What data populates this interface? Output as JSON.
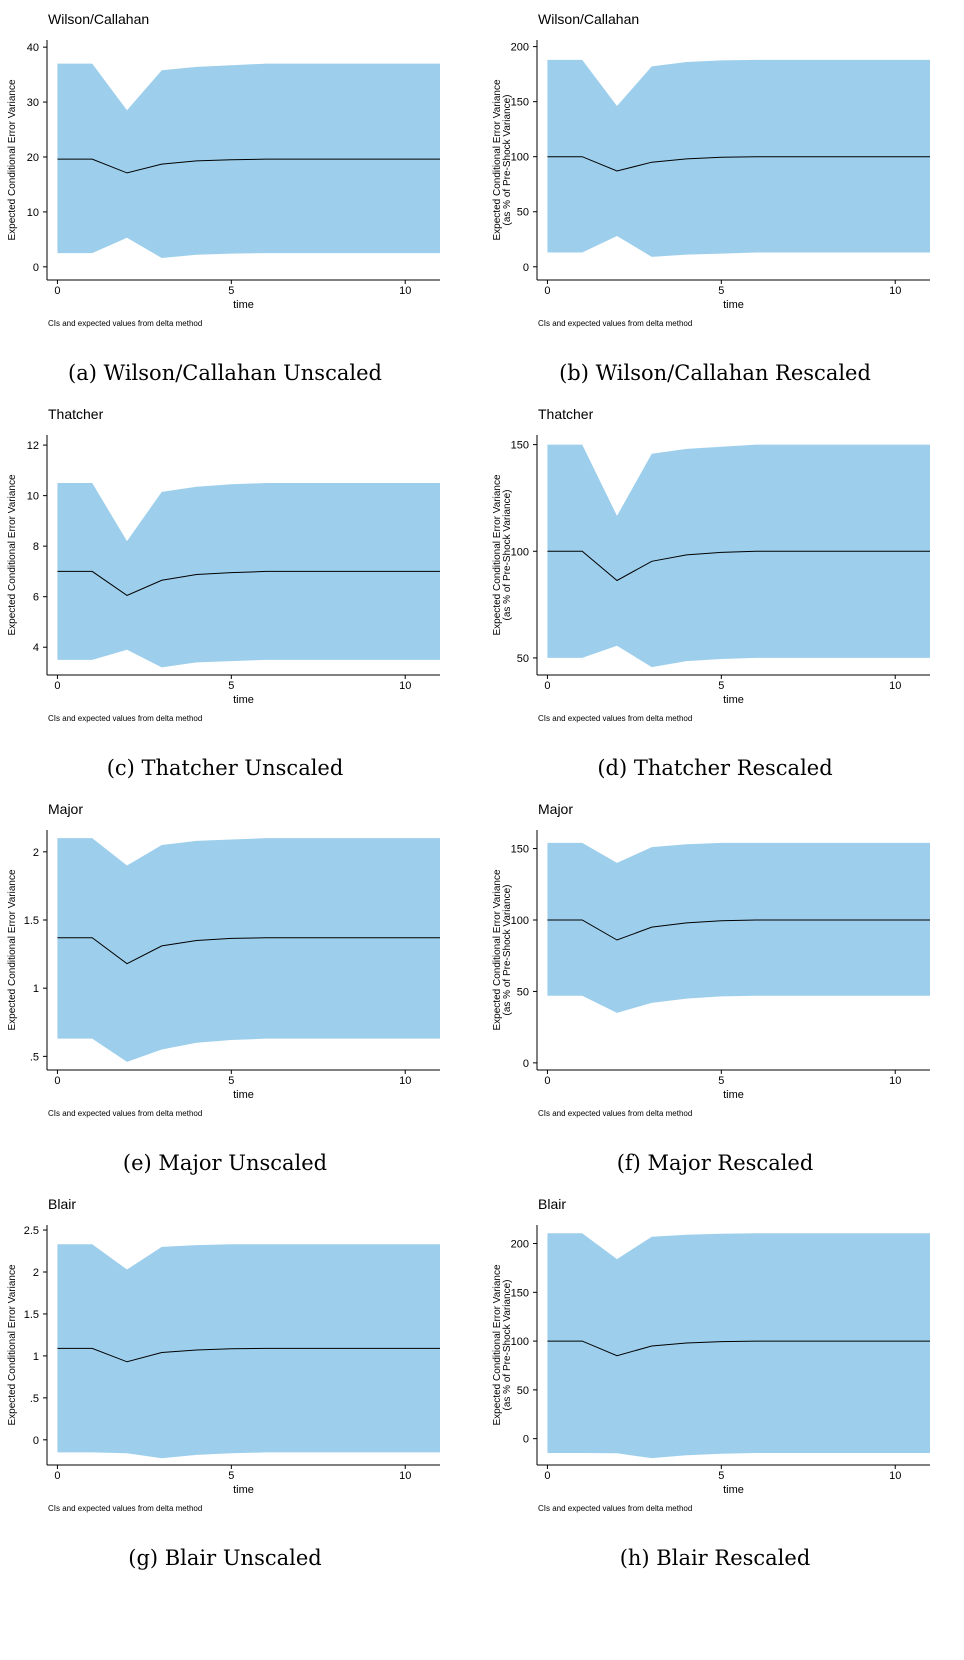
{
  "chart_data": [
    {
      "type": "line",
      "title": "Wilson/Callahan",
      "ylabel": [
        "Expected Conditional Error Variance"
      ],
      "xlabel": "time",
      "note": "CIs and expected values from delta method",
      "caption": "(a) Wilson/Callahan Unscaled",
      "x": [
        0,
        1,
        2,
        3,
        4,
        5,
        6,
        7,
        8,
        9,
        10,
        11
      ],
      "values": [
        19.6,
        19.6,
        17.1,
        18.7,
        19.3,
        19.5,
        19.6,
        19.6,
        19.6,
        19.6,
        19.6,
        19.6
      ],
      "lower": [
        2.5,
        2.5,
        5.3,
        1.6,
        2.2,
        2.4,
        2.5,
        2.5,
        2.5,
        2.5,
        2.5,
        2.5
      ],
      "upper": [
        37,
        37,
        28.5,
        35.8,
        36.4,
        36.7,
        37,
        37,
        37,
        37,
        37,
        37
      ],
      "xlim": [
        -0.3,
        11
      ],
      "xticks": [
        0,
        5,
        10
      ],
      "ylim": [
        -2.4,
        41.3
      ],
      "yticks": [
        0,
        10,
        20,
        30,
        40
      ],
      "band_color": "#9dcfec",
      "line_color": "#000000"
    },
    {
      "type": "line",
      "title": "Wilson/Callahan",
      "ylabel": [
        "Expected Conditional Error Variance",
        "(as % of Pre-Shock Variance)"
      ],
      "xlabel": "time",
      "note": "CIs and expected values from delta method",
      "caption": "(b) Wilson/Callahan Rescaled",
      "x": [
        0,
        1,
        2,
        3,
        4,
        5,
        6,
        7,
        8,
        9,
        10,
        11
      ],
      "values": [
        100,
        100,
        87,
        95,
        98,
        99.5,
        100,
        100,
        100,
        100,
        100,
        100
      ],
      "lower": [
        13,
        13,
        28,
        9,
        11,
        12,
        13,
        13,
        13,
        13,
        13,
        13
      ],
      "upper": [
        188,
        188,
        146,
        182,
        186,
        187.5,
        188,
        188,
        188,
        188,
        188,
        188
      ],
      "xlim": [
        -0.3,
        11
      ],
      "xticks": [
        0,
        5,
        10
      ],
      "ylim": [
        -12,
        206
      ],
      "yticks": [
        0,
        50,
        100,
        150,
        200
      ],
      "band_color": "#9dcfec",
      "line_color": "#000000"
    },
    {
      "type": "line",
      "title": "Thatcher",
      "ylabel": [
        "Expected Conditional Error Variance"
      ],
      "xlabel": "time",
      "note": "CIs and expected values from delta method",
      "caption": "(c) Thatcher Unscaled",
      "x": [
        0,
        1,
        2,
        3,
        4,
        5,
        6,
        7,
        8,
        9,
        10,
        11
      ],
      "values": [
        7.0,
        7.0,
        6.05,
        6.65,
        6.88,
        6.95,
        7.0,
        7.0,
        7.0,
        7.0,
        7.0,
        7.0
      ],
      "lower": [
        3.5,
        3.5,
        3.9,
        3.2,
        3.4,
        3.45,
        3.5,
        3.5,
        3.5,
        3.5,
        3.5,
        3.5
      ],
      "upper": [
        10.5,
        10.5,
        8.2,
        10.15,
        10.35,
        10.45,
        10.5,
        10.5,
        10.5,
        10.5,
        10.5,
        10.5
      ],
      "xlim": [
        -0.3,
        11
      ],
      "xticks": [
        0,
        5,
        10
      ],
      "ylim": [
        2.9,
        12.4
      ],
      "yticks": [
        4,
        6,
        8,
        10,
        12
      ],
      "band_color": "#9dcfec",
      "line_color": "#000000"
    },
    {
      "type": "line",
      "title": "Thatcher",
      "ylabel": [
        "Expected Conditional Error Variance",
        "(as % of Pre-Shock Variance)"
      ],
      "xlabel": "time",
      "note": "CIs and expected values from delta method",
      "caption": "(d) Thatcher Rescaled",
      "x": [
        0,
        1,
        2,
        3,
        4,
        5,
        6,
        7,
        8,
        9,
        10,
        11
      ],
      "values": [
        100,
        100,
        86.3,
        95.3,
        98.3,
        99.5,
        100,
        100,
        100,
        100,
        100,
        100
      ],
      "lower": [
        50,
        50,
        55.7,
        45.7,
        48.5,
        49.5,
        50,
        50,
        50,
        50,
        50,
        50
      ],
      "upper": [
        150,
        150,
        116.6,
        145.7,
        148,
        149,
        150,
        150,
        150,
        150,
        150,
        150
      ],
      "xlim": [
        -0.3,
        11
      ],
      "xticks": [
        0,
        5,
        10
      ],
      "ylim": [
        42,
        154.5
      ],
      "yticks": [
        50,
        100,
        150
      ],
      "band_color": "#9dcfec",
      "line_color": "#000000"
    },
    {
      "type": "line",
      "title": "Major",
      "ylabel": [
        "Expected Conditional Error Variance"
      ],
      "xlabel": "time",
      "note": "CIs and expected values from delta method",
      "caption": "(e) Major Unscaled",
      "x": [
        0,
        1,
        2,
        3,
        4,
        5,
        6,
        7,
        8,
        9,
        10,
        11
      ],
      "values": [
        1.37,
        1.37,
        1.18,
        1.31,
        1.35,
        1.365,
        1.37,
        1.37,
        1.37,
        1.37,
        1.37,
        1.37
      ],
      "lower": [
        0.63,
        0.63,
        0.46,
        0.55,
        0.6,
        0.62,
        0.63,
        0.63,
        0.63,
        0.63,
        0.63,
        0.63
      ],
      "upper": [
        2.1,
        2.1,
        1.9,
        2.05,
        2.08,
        2.09,
        2.1,
        2.1,
        2.1,
        2.1,
        2.1,
        2.1
      ],
      "xlim": [
        -0.3,
        11
      ],
      "xticks": [
        0,
        5,
        10
      ],
      "ylim": [
        0.4,
        2.16
      ],
      "yticks": [
        {
          "value": 0.5,
          "label": ".5"
        },
        1,
        1.5,
        2
      ],
      "band_color": "#9dcfec",
      "line_color": "#000000"
    },
    {
      "type": "line",
      "title": "Major",
      "ylabel": [
        "Expected Conditional Error Variance",
        "(as % of Pre-Shock Variance)"
      ],
      "xlabel": "time",
      "note": "CIs and expected values from delta method",
      "caption": "(f) Major Rescaled",
      "x": [
        0,
        1,
        2,
        3,
        4,
        5,
        6,
        7,
        8,
        9,
        10,
        11
      ],
      "values": [
        100,
        100,
        86,
        95,
        98,
        99.5,
        100,
        100,
        100,
        100,
        100,
        100
      ],
      "lower": [
        47,
        47,
        35,
        42,
        45,
        46.5,
        47,
        47,
        47,
        47,
        47,
        47
      ],
      "upper": [
        154,
        154,
        140,
        151,
        153,
        154,
        154,
        154,
        154,
        154,
        154,
        154
      ],
      "xlim": [
        -0.3,
        11
      ],
      "xticks": [
        0,
        5,
        10
      ],
      "ylim": [
        -5,
        163
      ],
      "yticks": [
        0,
        50,
        100,
        150
      ],
      "band_color": "#9dcfec",
      "line_color": "#000000"
    },
    {
      "type": "line",
      "title": "Blair",
      "ylabel": [
        "Expected Conditional Error Variance"
      ],
      "xlabel": "time",
      "note": "CIs and expected values from delta method",
      "caption": "(g) Blair Unscaled",
      "x": [
        0,
        1,
        2,
        3,
        4,
        5,
        6,
        7,
        8,
        9,
        10,
        11
      ],
      "values": [
        1.09,
        1.09,
        0.93,
        1.04,
        1.07,
        1.085,
        1.09,
        1.09,
        1.09,
        1.09,
        1.09,
        1.09
      ],
      "lower": [
        -0.15,
        -0.15,
        -0.16,
        -0.22,
        -0.18,
        -0.16,
        -0.15,
        -0.15,
        -0.15,
        -0.15,
        -0.15,
        -0.15
      ],
      "upper": [
        2.33,
        2.33,
        2.03,
        2.3,
        2.32,
        2.33,
        2.33,
        2.33,
        2.33,
        2.33,
        2.33,
        2.33
      ],
      "xlim": [
        -0.3,
        11
      ],
      "xticks": [
        0,
        5,
        10
      ],
      "ylim": [
        -0.3,
        2.56
      ],
      "yticks": [
        0,
        {
          "value": 0.5,
          "label": ".5"
        },
        1,
        1.5,
        2,
        2.5
      ],
      "band_color": "#9dcfec",
      "line_color": "#000000"
    },
    {
      "type": "line",
      "title": "Blair",
      "ylabel": [
        "Expected Conditional Error Variance",
        "(as % of Pre-Shock Variance)"
      ],
      "xlabel": "time",
      "note": "CIs and expected values from delta method",
      "caption": "(h) Blair Rescaled",
      "x": [
        0,
        1,
        2,
        3,
        4,
        5,
        6,
        7,
        8,
        9,
        10,
        11
      ],
      "values": [
        100,
        100,
        85,
        95,
        98,
        99.5,
        100,
        100,
        100,
        100,
        100,
        100
      ],
      "lower": [
        -14.7,
        -14.7,
        -15,
        -20,
        -17,
        -15.5,
        -14.7,
        -14.7,
        -14.7,
        -14.7,
        -14.7,
        -14.7
      ],
      "upper": [
        210.5,
        210.5,
        184,
        207,
        209,
        210,
        210.5,
        210.5,
        210.5,
        210.5,
        210.5,
        210.5
      ],
      "xlim": [
        -0.3,
        11
      ],
      "xticks": [
        0,
        5,
        10
      ],
      "ylim": [
        -27,
        219
      ],
      "yticks": [
        0,
        50,
        100,
        150,
        200
      ],
      "band_color": "#9dcfec",
      "line_color": "#000000"
    }
  ]
}
